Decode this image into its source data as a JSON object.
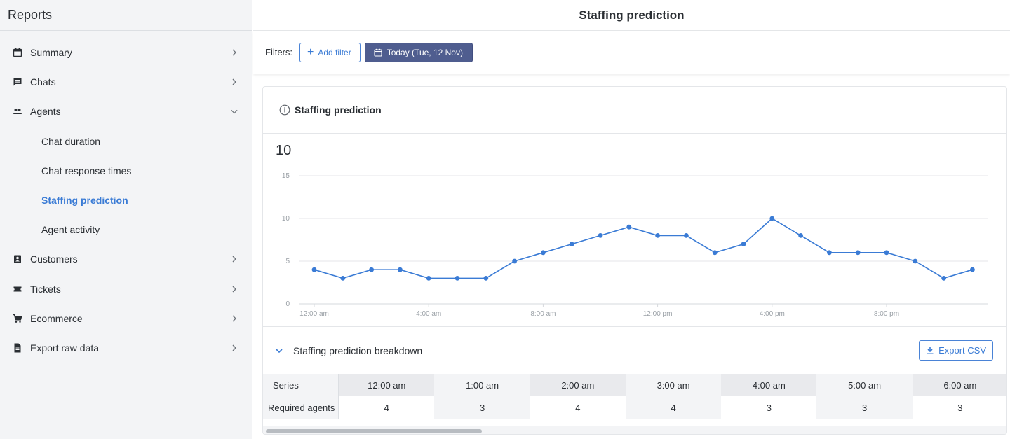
{
  "sidebar": {
    "title": "Reports",
    "items": [
      {
        "label": "Summary",
        "icon": "calendar-icon"
      },
      {
        "label": "Chats",
        "icon": "chat-icon"
      },
      {
        "label": "Agents",
        "icon": "people-icon"
      },
      {
        "label": "Customers",
        "icon": "contact-card-icon"
      },
      {
        "label": "Tickets",
        "icon": "ticket-icon"
      },
      {
        "label": "Ecommerce",
        "icon": "cart-icon"
      },
      {
        "label": "Export raw data",
        "icon": "file-icon"
      }
    ],
    "agents_sub": [
      "Chat duration",
      "Chat response times",
      "Staffing prediction",
      "Agent activity"
    ],
    "active_sub": "Staffing prediction"
  },
  "header": {
    "title": "Staffing prediction"
  },
  "filters": {
    "label": "Filters:",
    "add_filter": "Add filter",
    "date": "Today (Tue, 12 Nov)"
  },
  "card": {
    "title": "Staffing prediction",
    "big_value": "10",
    "breakdown_title": "Staffing prediction breakdown",
    "export_label": "Export CSV"
  },
  "chart_data": {
    "type": "line",
    "ylim": [
      0,
      15
    ],
    "yticks": [
      "0",
      "5",
      "10",
      "15"
    ],
    "xtick_labels": [
      "12:00 am",
      "4:00 am",
      "8:00 am",
      "12:00 pm",
      "4:00 pm",
      "8:00 pm"
    ],
    "xtick_hours": [
      0,
      4,
      8,
      12,
      16,
      20
    ],
    "x_hours": [
      0,
      1,
      2,
      3,
      4,
      5,
      6,
      7,
      8,
      9,
      10,
      11,
      12,
      13,
      14,
      15,
      16,
      17,
      18,
      19,
      20,
      21,
      22,
      23
    ],
    "values": [
      4,
      3,
      4,
      4,
      3,
      3,
      3,
      5,
      6,
      7,
      8,
      9,
      8,
      8,
      6,
      7,
      10,
      8,
      6,
      6,
      6,
      5,
      3,
      4
    ],
    "color": "#3a7bd5",
    "grid": true
  },
  "table": {
    "series_header": "Series",
    "row_label": "Required agents",
    "columns": [
      "12:00 am",
      "1:00 am",
      "2:00 am",
      "3:00 am",
      "4:00 am",
      "5:00 am",
      "6:00 am"
    ],
    "values": [
      "4",
      "3",
      "4",
      "4",
      "3",
      "3",
      "3"
    ]
  }
}
